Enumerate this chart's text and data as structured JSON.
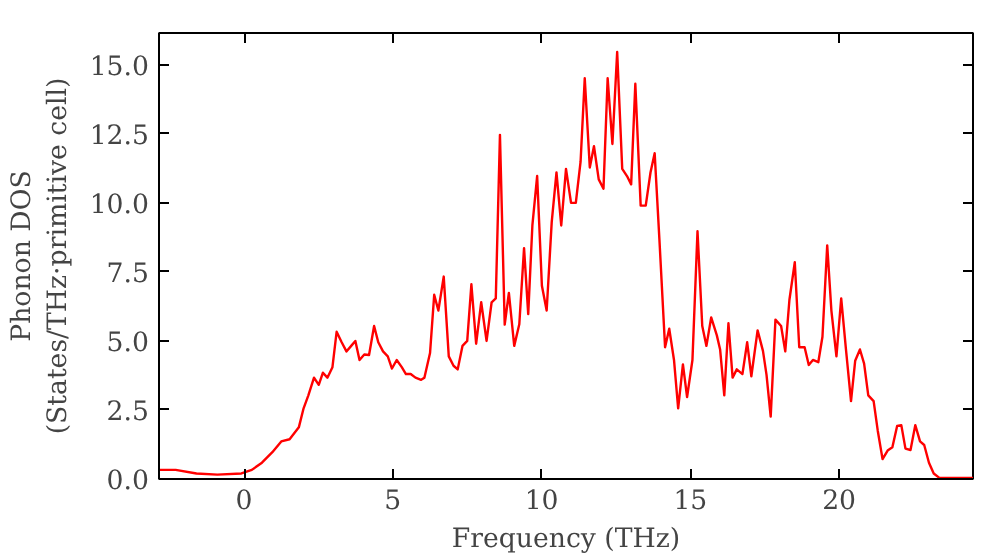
{
  "chart_data": {
    "type": "line",
    "xlabel": "Frequency (THz)",
    "ylabel": "Phonon DOS\n(States/THz·primitive cell)",
    "xlim": [
      -2.86,
      24.5
    ],
    "ylim": [
      0,
      16.15
    ],
    "xticks": [
      0,
      5,
      10,
      15,
      20
    ],
    "yticks": [
      {
        "value": 0,
        "label": "0.0"
      },
      {
        "value": 2.5,
        "label": "2.5"
      },
      {
        "value": 5,
        "label": "5.0"
      },
      {
        "value": 7.5,
        "label": "7.5"
      },
      {
        "value": 10,
        "label": "10.0"
      },
      {
        "value": 12.5,
        "label": "12.5"
      },
      {
        "value": 15,
        "label": "15.0"
      }
    ],
    "grid": false,
    "marker": "none",
    "line_style": "solid",
    "series": [
      {
        "color": "#ff0000",
        "x": [
          -2.86,
          -2.3,
          -1.6,
          -0.9,
          -0.09,
          0.26,
          0.6,
          0.95,
          1.25,
          1.53,
          1.84,
          2.0,
          2.16,
          2.35,
          2.51,
          2.65,
          2.8,
          2.97,
          3.11,
          3.28,
          3.44,
          3.6,
          3.74,
          3.88,
          4.04,
          4.2,
          4.37,
          4.51,
          4.67,
          4.83,
          4.97,
          5.13,
          5.3,
          5.44,
          5.6,
          5.76,
          5.95,
          6.06,
          6.25,
          6.39,
          6.53,
          6.71,
          6.88,
          7.04,
          7.18,
          7.34,
          7.5,
          7.64,
          7.8,
          7.97,
          8.15,
          8.32,
          8.46,
          8.6,
          8.76,
          8.9,
          9.08,
          9.25,
          9.41,
          9.55,
          9.69,
          9.85,
          10.01,
          10.17,
          10.34,
          10.5,
          10.66,
          10.82,
          10.99,
          11.15,
          11.31,
          11.45,
          11.62,
          11.76,
          11.92,
          12.08,
          12.22,
          12.38,
          12.54,
          12.71,
          12.87,
          13.01,
          13.15,
          13.33,
          13.5,
          13.66,
          13.8,
          13.96,
          14.15,
          14.29,
          14.45,
          14.59,
          14.75,
          14.89,
          15.07,
          15.24,
          15.4,
          15.54,
          15.7,
          15.89,
          16.0,
          16.14,
          16.28,
          16.42,
          16.56,
          16.75,
          16.91,
          17.05,
          17.26,
          17.44,
          17.56,
          17.7,
          17.86,
          18.05,
          18.19,
          18.33,
          18.51,
          18.66,
          18.84,
          18.98,
          19.12,
          19.3,
          19.44,
          19.6,
          19.74,
          19.91,
          20.07,
          20.23,
          20.4,
          20.54,
          20.7,
          20.84,
          20.98,
          21.16,
          21.3,
          21.46,
          21.63,
          21.79,
          21.95,
          22.09,
          22.23,
          22.4,
          22.56,
          22.72,
          22.86,
          23.02,
          23.18,
          23.37,
          24.5
        ],
        "values": [
          0.33,
          0.33,
          0.2,
          0.16,
          0.2,
          0.33,
          0.59,
          0.97,
          1.36,
          1.44,
          1.87,
          2.56,
          3.03,
          3.67,
          3.41,
          3.85,
          3.67,
          4.05,
          5.33,
          4.95,
          4.62,
          4.82,
          5.0,
          4.31,
          4.51,
          4.49,
          5.54,
          4.95,
          4.62,
          4.44,
          4.0,
          4.31,
          4.05,
          3.8,
          3.8,
          3.67,
          3.59,
          3.67,
          4.56,
          6.67,
          6.1,
          7.33,
          4.44,
          4.1,
          3.97,
          4.82,
          5.0,
          7.05,
          4.9,
          6.4,
          5.0,
          6.4,
          6.54,
          12.46,
          5.59,
          6.74,
          4.82,
          5.6,
          8.36,
          5.97,
          9.18,
          10.97,
          7.0,
          6.1,
          9.3,
          11.1,
          9.18,
          11.23,
          10.0,
          10.0,
          11.49,
          14.51,
          11.28,
          12.05,
          10.85,
          10.51,
          14.51,
          12.13,
          15.46,
          11.23,
          10.97,
          10.67,
          14.31,
          9.9,
          9.9,
          11.1,
          11.8,
          8.67,
          4.77,
          5.44,
          4.31,
          2.56,
          4.15,
          2.97,
          4.31,
          8.97,
          5.54,
          4.82,
          5.85,
          5.2,
          4.69,
          3.03,
          5.64,
          3.67,
          3.97,
          3.8,
          4.95,
          3.72,
          5.38,
          4.64,
          3.77,
          2.26,
          5.77,
          5.54,
          4.62,
          6.49,
          7.85,
          4.77,
          4.77,
          4.13,
          4.31,
          4.23,
          5.15,
          8.46,
          6.1,
          4.44,
          6.54,
          4.69,
          2.82,
          4.28,
          4.69,
          4.18,
          3.03,
          2.82,
          1.74,
          0.72,
          1.03,
          1.15,
          1.92,
          1.95,
          1.1,
          1.05,
          1.95,
          1.36,
          1.23,
          0.59,
          0.2,
          0.04,
          0.04
        ]
      }
    ]
  }
}
